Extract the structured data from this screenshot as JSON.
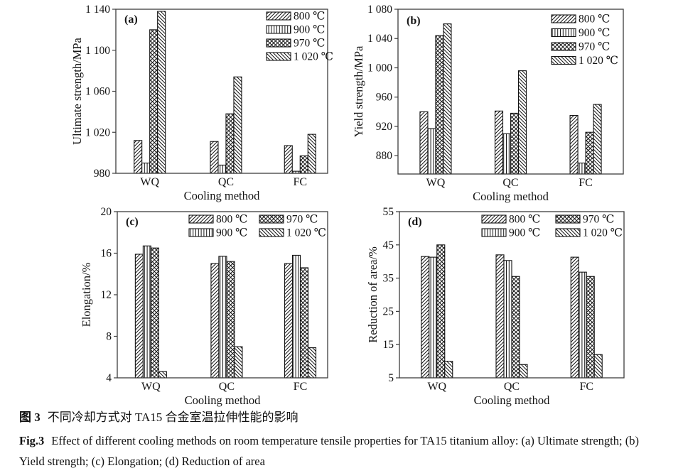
{
  "colors": {
    "background": "#ffffff",
    "ink": "#141414",
    "axis": "#3d3d3d",
    "bar_fill": "#ffffff",
    "bar_stroke": "#141414"
  },
  "caption": {
    "zh_label": "图 3",
    "zh_text": "不同冷却方式对 TA15 合金室温拉伸性能的影响",
    "en_label": "Fig.3",
    "en_text": "Effect of different cooling methods on room temperature tensile properties for TA15 titanium alloy: (a) Ultimate strength; (b) Yield strength; (c) Elongation; (d) Reduction of area"
  },
  "chart_data": [
    {
      "type": "bar",
      "panel": "(a)",
      "ylabel": "Ultimate strength/MPa",
      "xlabel": "Cooling method",
      "categories": [
        "WQ",
        "QC",
        "FC"
      ],
      "series": [
        {
          "name": "800 ℃",
          "hatch": "diagonal-up",
          "values": [
            1012,
            1011,
            1007
          ]
        },
        {
          "name": "900 ℃",
          "hatch": "vertical",
          "values": [
            990,
            988,
            982
          ]
        },
        {
          "name": "970 ℃",
          "hatch": "crosshatch",
          "values": [
            1120,
            1038,
            997
          ]
        },
        {
          "name": "1 020 ℃",
          "hatch": "diagonal-down",
          "values": [
            1138,
            1074,
            1018
          ]
        }
      ],
      "ylim": [
        980,
        1140
      ],
      "ytick_values": [
        980,
        1020,
        1060,
        1100,
        1140
      ],
      "ytick_labels": [
        "980",
        "1 020",
        "1 060",
        "1 100",
        "1 140"
      ],
      "legend": {
        "position": "top-right-inside",
        "columns": 1
      },
      "grid": false
    },
    {
      "type": "bar",
      "panel": "(b)",
      "ylabel": "Yield strength/MPa",
      "xlabel": "Cooling method",
      "categories": [
        "WQ",
        "QC",
        "FC"
      ],
      "series": [
        {
          "name": "800 ℃",
          "hatch": "diagonal-up",
          "values": [
            940,
            941,
            935
          ]
        },
        {
          "name": "900 ℃",
          "hatch": "vertical",
          "values": [
            917,
            910,
            870
          ]
        },
        {
          "name": "970 ℃",
          "hatch": "crosshatch",
          "values": [
            1044,
            938,
            912
          ]
        },
        {
          "name": "1 020 ℃",
          "hatch": "diagonal-down",
          "values": [
            1060,
            996,
            950
          ]
        }
      ],
      "ylim": [
        855,
        1080
      ],
      "ytick_values": [
        880,
        920,
        960,
        1000,
        1040,
        1080
      ],
      "ytick_labels": [
        "880",
        "920",
        "960",
        "1 000",
        "1 040",
        "1 080"
      ],
      "legend": {
        "position": "top-right-inside",
        "columns": 1
      },
      "grid": false
    },
    {
      "type": "bar",
      "panel": "(c)",
      "ylabel": "Elongation/%",
      "xlabel": "Cooling method",
      "categories": [
        "WQ",
        "QC",
        "FC"
      ],
      "series": [
        {
          "name": "800 ℃",
          "hatch": "diagonal-up",
          "values": [
            15.9,
            15.0,
            15.0
          ]
        },
        {
          "name": "900 ℃",
          "hatch": "vertical",
          "values": [
            16.7,
            15.7,
            15.8
          ]
        },
        {
          "name": "970 ℃",
          "hatch": "crosshatch",
          "values": [
            16.5,
            15.2,
            14.6
          ]
        },
        {
          "name": "1 020 ℃",
          "hatch": "diagonal-down",
          "values": [
            4.6,
            7.0,
            6.9
          ]
        }
      ],
      "ylim": [
        4,
        20
      ],
      "ytick_values": [
        4,
        8,
        12,
        16,
        20
      ],
      "ytick_labels": [
        "4",
        "8",
        "12",
        "16",
        "20"
      ],
      "legend": {
        "position": "top-center-inside",
        "columns": 2
      },
      "grid": false
    },
    {
      "type": "bar",
      "panel": "(d)",
      "ylabel": "Reduction of area/%",
      "xlabel": "Cooling method",
      "categories": [
        "WQ",
        "QC",
        "FC"
      ],
      "series": [
        {
          "name": "800 ℃",
          "hatch": "diagonal-up",
          "values": [
            41.5,
            42.0,
            41.3
          ]
        },
        {
          "name": "900 ℃",
          "hatch": "vertical",
          "values": [
            41.3,
            40.3,
            36.8
          ]
        },
        {
          "name": "970 ℃",
          "hatch": "crosshatch",
          "values": [
            45.0,
            35.5,
            35.5
          ]
        },
        {
          "name": "1 020 ℃",
          "hatch": "diagonal-down",
          "values": [
            10.0,
            9.0,
            12.0
          ]
        }
      ],
      "ylim": [
        5,
        55
      ],
      "ytick_values": [
        5,
        15,
        25,
        35,
        45,
        55
      ],
      "ytick_labels": [
        "5",
        "15",
        "25",
        "35",
        "45",
        "55"
      ],
      "legend": {
        "position": "top-center-inside",
        "columns": 2
      },
      "grid": false
    }
  ]
}
